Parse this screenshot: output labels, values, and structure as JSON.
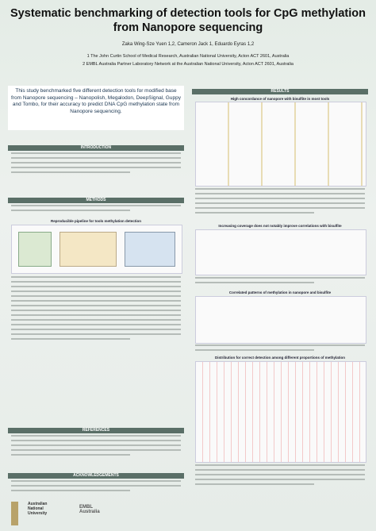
{
  "header": {
    "title": "Systematic benchmarking of detection tools for CpG methylation from Nanopore sequencing",
    "authors": "Zaka Wing-Sze Yuen 1,2, Cameron Jack 1, Eduardo Eyras 1,2",
    "affiliations": [
      "1 The John Curtin School of Medical Research, Australian National University, Acton ACT 2601, Australia",
      "2 EMBL Australia Partner Laboratory Network at the Australian National University, Acton ACT 2601, Australia"
    ]
  },
  "summary": "This study benchmarked five different detection tools for modified base from Nanopore sequencing – Nanopolish, Megalodon, DeepSignal, Guppy and Tombo, for their accuracy to predict DNA CpG methylation state from Nanopore sequencing.",
  "sections": {
    "introduction": "INTRODUCTION",
    "methods": "METHODS",
    "references": "REFERENCES",
    "acknowledgements": "ACKNOWLEDGEMENTS",
    "results": "RESULTS"
  },
  "methods_figure": "Reproducible pipeline for tools methylation detection",
  "results_figures": [
    "High concordance of nanopore with bisulfite in most tools",
    "Increasing coverage does not notably improve correlations with bisulfite",
    "Correlated patterns of methylation in nanopore and bisulfite",
    "Distribution for correct detection among different proportions of methylation"
  ],
  "logos": [
    "Australian National University",
    "EMBL Australia"
  ]
}
